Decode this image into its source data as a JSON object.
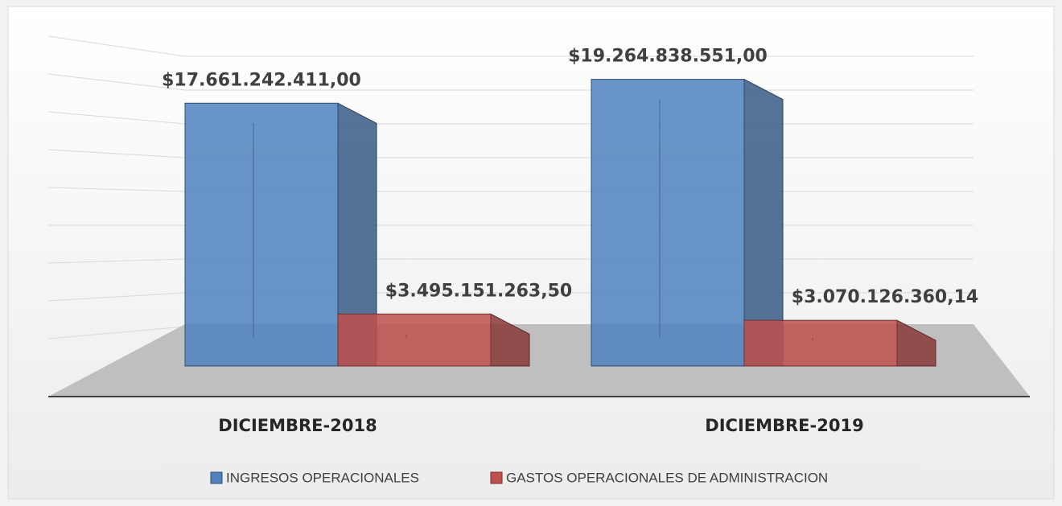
{
  "chart_data": {
    "type": "bar3d",
    "categories": [
      "DICIEMBRE-2018",
      "DICIEMBRE-2019"
    ],
    "series": [
      {
        "name": "INGRESOS OPERACIONALES",
        "color": "#4f81bd",
        "values": [
          17661242411,
          19264838551
        ],
        "value_labels": [
          "$17.661.242.411,00",
          "$19.264.838.551,00"
        ]
      },
      {
        "name": "GASTOS OPERACIONALES DE ADMINISTRACION",
        "color": "#c0504d",
        "values": [
          3495151263.5,
          3070126360.14
        ],
        "value_labels": [
          "$3.495.151.263,50",
          "$3.070.126.360,14"
        ]
      }
    ],
    "ylim": [
      0,
      20000000000
    ],
    "legend": "bottom"
  }
}
